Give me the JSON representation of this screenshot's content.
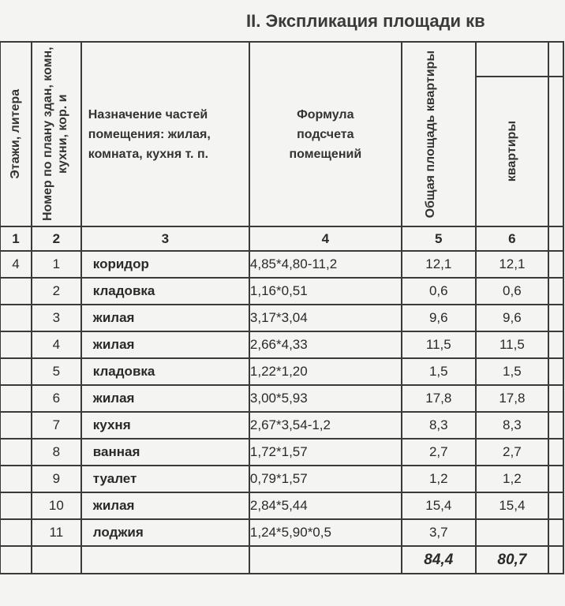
{
  "title": "II. Экспликация площади кв",
  "headers": {
    "c1": "Этажи, литера",
    "c2": "Номер по плану здан, комн, кухни, кор. и",
    "c3": "Назначение частей помещения: жилая, комната, кухня  т. п.",
    "c4": "Формула подсчета помещений",
    "c5": "Общая площадь квартиры",
    "c6": "квартиры"
  },
  "column_numbers": [
    "1",
    "2",
    "3",
    "4",
    "5",
    "6"
  ],
  "rows": [
    {
      "floor": "4",
      "no": "1",
      "name": "коридор",
      "formula": "4,85*4,80-11,2",
      "total": "12,1",
      "flat": "12,1"
    },
    {
      "floor": "",
      "no": "2",
      "name": "кладовка",
      "formula": "1,16*0,51",
      "total": "0,6",
      "flat": "0,6"
    },
    {
      "floor": "",
      "no": "3",
      "name": "жилая",
      "formula": "3,17*3,04",
      "total": "9,6",
      "flat": "9,6"
    },
    {
      "floor": "",
      "no": "4",
      "name": "жилая",
      "formula": "2,66*4,33",
      "total": "11,5",
      "flat": "11,5"
    },
    {
      "floor": "",
      "no": "5",
      "name": "кладовка",
      "formula": "1,22*1,20",
      "total": "1,5",
      "flat": "1,5"
    },
    {
      "floor": "",
      "no": "6",
      "name": "жилая",
      "formula": "3,00*5,93",
      "total": "17,8",
      "flat": "17,8"
    },
    {
      "floor": "",
      "no": "7",
      "name": "кухня",
      "formula": "2,67*3,54-1,2",
      "total": "8,3",
      "flat": "8,3"
    },
    {
      "floor": "",
      "no": "8",
      "name": "ванная",
      "formula": "1,72*1,57",
      "total": "2,7",
      "flat": "2,7"
    },
    {
      "floor": "",
      "no": "9",
      "name": "туалет",
      "formula": "0,79*1,57",
      "total": "1,2",
      "flat": "1,2"
    },
    {
      "floor": "",
      "no": "10",
      "name": "жилая",
      "formula": "2,84*5,44",
      "total": "15,4",
      "flat": "15,4"
    },
    {
      "floor": "",
      "no": "11",
      "name": "лоджия",
      "formula": "1,24*5,90*0,5",
      "total": "3,7",
      "flat": ""
    }
  ],
  "totals": {
    "total": "84,4",
    "flat": "80,7"
  }
}
